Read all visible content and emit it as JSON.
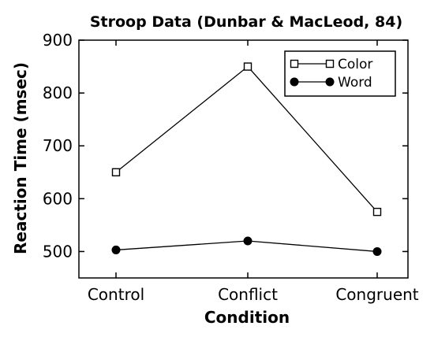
{
  "chart_data": {
    "type": "line",
    "title": "Stroop Data (Dunbar & MacLeod, 84)",
    "xlabel": "Condition",
    "ylabel": "Reaction Time (msec)",
    "categories": [
      "Control",
      "Conflict",
      "Congruent"
    ],
    "ylim": [
      450,
      900
    ],
    "yticks": [
      500,
      600,
      700,
      800,
      900
    ],
    "grid": false,
    "legend_position": "top-right",
    "series": [
      {
        "name": "Color",
        "values": [
          650,
          850,
          575
        ],
        "marker": "open-square",
        "color": "#000000"
      },
      {
        "name": "Word",
        "values": [
          503,
          520,
          500
        ],
        "marker": "filled-circle",
        "color": "#000000"
      }
    ]
  }
}
